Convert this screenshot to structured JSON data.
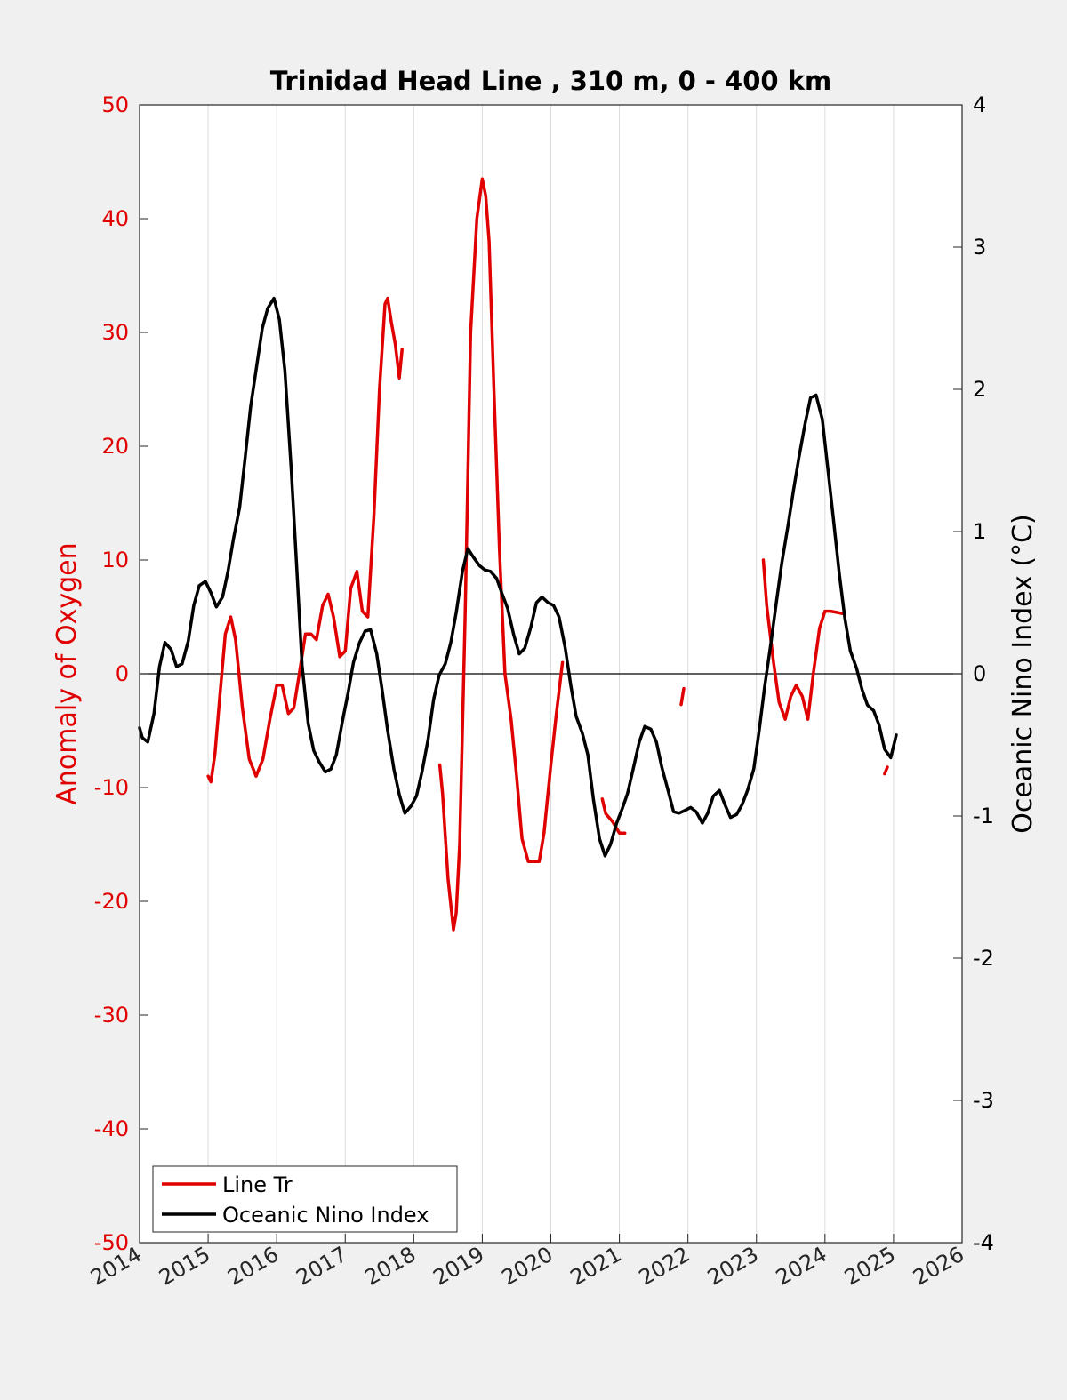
{
  "chart_data": {
    "type": "line",
    "title": "Trinidad Head Line , 310 m, 0 - 400 km",
    "xlim": [
      2014,
      2026
    ],
    "x_ticks": [
      "2014",
      "2015",
      "2016",
      "2017",
      "2018",
      "2019",
      "2020",
      "2021",
      "2022",
      "2023",
      "2024",
      "2025",
      "2026"
    ],
    "left_axis": {
      "label": "Anomaly of Oxygen",
      "color": "#e00000",
      "ylim": [
        -50,
        50
      ],
      "ticks": [
        "-50",
        "-40",
        "-30",
        "-20",
        "-10",
        "0",
        "10",
        "20",
        "30",
        "40",
        "50"
      ]
    },
    "right_axis": {
      "label": "Oceanic Nino Index (°C)",
      "color": "#000000",
      "ylim": [
        -4,
        4
      ],
      "ticks": [
        "-4",
        "-3",
        "-2",
        "-1",
        "0",
        "1",
        "2",
        "3",
        "4"
      ]
    },
    "grid": "vertical",
    "legend_position": "bottom-left",
    "series": [
      {
        "name": "Line Tr",
        "axis": "left",
        "color": "#e00000",
        "segments": [
          [
            [
              2015.0,
              -9.0
            ],
            [
              2015.04,
              -9.5
            ],
            [
              2015.1,
              -7
            ],
            [
              2015.17,
              -2
            ],
            [
              2015.25,
              3.5
            ],
            [
              2015.33,
              5.0
            ],
            [
              2015.4,
              3
            ],
            [
              2015.5,
              -3
            ],
            [
              2015.6,
              -7.5
            ],
            [
              2015.7,
              -9.0
            ],
            [
              2015.8,
              -7.5
            ],
            [
              2015.9,
              -4
            ],
            [
              2016.0,
              -1
            ],
            [
              2016.08,
              -1
            ],
            [
              2016.17,
              -3.5
            ],
            [
              2016.25,
              -3
            ],
            [
              2016.33,
              0
            ],
            [
              2016.42,
              3.5
            ],
            [
              2016.5,
              3.5
            ],
            [
              2016.58,
              3.0
            ],
            [
              2016.67,
              6
            ],
            [
              2016.75,
              7.0
            ],
            [
              2016.83,
              5
            ],
            [
              2016.92,
              1.5
            ],
            [
              2017.0,
              2
            ],
            [
              2017.08,
              7.5
            ],
            [
              2017.17,
              9.0
            ],
            [
              2017.25,
              5.5
            ],
            [
              2017.33,
              5.0
            ],
            [
              2017.42,
              14
            ],
            [
              2017.5,
              25
            ],
            [
              2017.58,
              32.5
            ],
            [
              2017.62,
              33.0
            ],
            [
              2017.67,
              31
            ],
            [
              2017.73,
              29
            ],
            [
              2017.79,
              26
            ],
            [
              2017.83,
              28.5
            ]
          ],
          [
            [
              2018.38,
              -8
            ],
            [
              2018.42,
              -10.5
            ],
            [
              2018.5,
              -18
            ],
            [
              2018.58,
              -22.5
            ],
            [
              2018.62,
              -21
            ],
            [
              2018.67,
              -15
            ],
            [
              2018.75,
              5
            ],
            [
              2018.83,
              30
            ],
            [
              2018.92,
              40
            ],
            [
              2019.0,
              43.5
            ],
            [
              2019.05,
              42
            ],
            [
              2019.1,
              38
            ],
            [
              2019.17,
              25
            ],
            [
              2019.25,
              11
            ],
            [
              2019.33,
              0
            ],
            [
              2019.42,
              -4
            ],
            [
              2019.5,
              -9
            ],
            [
              2019.58,
              -14.5
            ],
            [
              2019.67,
              -16.5
            ],
            [
              2019.75,
              -16.5
            ],
            [
              2019.83,
              -16.5
            ],
            [
              2019.9,
              -14
            ],
            [
              2020.0,
              -8
            ],
            [
              2020.08,
              -3.5
            ],
            [
              2020.17,
              1.0
            ]
          ],
          [
            [
              2020.75,
              -11
            ],
            [
              2020.8,
              -12.3
            ],
            [
              2020.9,
              -13
            ],
            [
              2021.0,
              -14
            ],
            [
              2021.08,
              -14
            ]
          ],
          [
            [
              2021.9,
              -2.7
            ],
            [
              2021.94,
              -1.3
            ]
          ],
          [
            [
              2023.1,
              10
            ],
            [
              2023.15,
              6
            ],
            [
              2023.25,
              1
            ],
            [
              2023.33,
              -2.5
            ],
            [
              2023.42,
              -4
            ],
            [
              2023.5,
              -2
            ],
            [
              2023.58,
              -1
            ],
            [
              2023.67,
              -2
            ],
            [
              2023.75,
              -4
            ],
            [
              2023.83,
              0
            ],
            [
              2023.92,
              4
            ],
            [
              2024.0,
              5.5
            ],
            [
              2024.08,
              5.5
            ],
            [
              2024.17,
              5.4
            ],
            [
              2024.25,
              5.3
            ]
          ],
          [
            [
              2024.87,
              -8.8
            ],
            [
              2024.91,
              -8.2
            ]
          ]
        ]
      },
      {
        "name": "Oceanic Nino Index",
        "axis": "right",
        "color": "#000000",
        "segments": [
          [
            [
              2014.0,
              -0.38
            ],
            [
              2014.04,
              -0.45
            ],
            [
              2014.12,
              -0.48
            ],
            [
              2014.21,
              -0.28
            ],
            [
              2014.29,
              0.05
            ],
            [
              2014.37,
              0.22
            ],
            [
              2014.46,
              0.17
            ],
            [
              2014.54,
              0.05
            ],
            [
              2014.62,
              0.07
            ],
            [
              2014.71,
              0.23
            ],
            [
              2014.79,
              0.48
            ],
            [
              2014.87,
              0.62
            ],
            [
              2014.96,
              0.65
            ],
            [
              2015.04,
              0.57
            ],
            [
              2015.12,
              0.47
            ],
            [
              2015.21,
              0.54
            ],
            [
              2015.29,
              0.72
            ],
            [
              2015.37,
              0.95
            ],
            [
              2015.46,
              1.17
            ],
            [
              2015.54,
              1.52
            ],
            [
              2015.62,
              1.88
            ],
            [
              2015.71,
              2.17
            ],
            [
              2015.79,
              2.43
            ],
            [
              2015.87,
              2.57
            ],
            [
              2015.96,
              2.64
            ],
            [
              2016.04,
              2.49
            ],
            [
              2016.12,
              2.13
            ],
            [
              2016.21,
              1.45
            ],
            [
              2016.29,
              0.77
            ],
            [
              2016.37,
              0.06
            ],
            [
              2016.46,
              -0.35
            ],
            [
              2016.54,
              -0.54
            ],
            [
              2016.62,
              -0.62
            ],
            [
              2016.71,
              -0.69
            ],
            [
              2016.79,
              -0.67
            ],
            [
              2016.87,
              -0.57
            ],
            [
              2016.96,
              -0.33
            ],
            [
              2017.04,
              -0.14
            ],
            [
              2017.12,
              0.08
            ],
            [
              2017.21,
              0.22
            ],
            [
              2017.29,
              0.3
            ],
            [
              2017.37,
              0.31
            ],
            [
              2017.46,
              0.14
            ],
            [
              2017.54,
              -0.12
            ],
            [
              2017.62,
              -0.4
            ],
            [
              2017.71,
              -0.67
            ],
            [
              2017.79,
              -0.85
            ],
            [
              2017.87,
              -0.98
            ],
            [
              2017.96,
              -0.93
            ],
            [
              2018.04,
              -0.86
            ],
            [
              2018.12,
              -0.69
            ],
            [
              2018.21,
              -0.46
            ],
            [
              2018.29,
              -0.18
            ],
            [
              2018.37,
              -0.01
            ],
            [
              2018.46,
              0.07
            ],
            [
              2018.54,
              0.22
            ],
            [
              2018.62,
              0.43
            ],
            [
              2018.71,
              0.72
            ],
            [
              2018.79,
              0.88
            ],
            [
              2018.87,
              0.82
            ],
            [
              2018.96,
              0.76
            ],
            [
              2019.04,
              0.73
            ],
            [
              2019.12,
              0.72
            ],
            [
              2019.21,
              0.67
            ],
            [
              2019.29,
              0.56
            ],
            [
              2019.37,
              0.46
            ],
            [
              2019.46,
              0.27
            ],
            [
              2019.54,
              0.14
            ],
            [
              2019.62,
              0.18
            ],
            [
              2019.71,
              0.33
            ],
            [
              2019.79,
              0.5
            ],
            [
              2019.87,
              0.54
            ],
            [
              2019.96,
              0.5
            ],
            [
              2020.04,
              0.48
            ],
            [
              2020.12,
              0.4
            ],
            [
              2020.21,
              0.18
            ],
            [
              2020.29,
              -0.08
            ],
            [
              2020.37,
              -0.3
            ],
            [
              2020.46,
              -0.42
            ],
            [
              2020.54,
              -0.57
            ],
            [
              2020.62,
              -0.88
            ],
            [
              2020.71,
              -1.16
            ],
            [
              2020.79,
              -1.28
            ],
            [
              2020.87,
              -1.2
            ],
            [
              2020.96,
              -1.05
            ],
            [
              2021.04,
              -0.95
            ],
            [
              2021.12,
              -0.84
            ],
            [
              2021.21,
              -0.65
            ],
            [
              2021.29,
              -0.48
            ],
            [
              2021.37,
              -0.37
            ],
            [
              2021.46,
              -0.39
            ],
            [
              2021.54,
              -0.48
            ],
            [
              2021.62,
              -0.66
            ],
            [
              2021.71,
              -0.82
            ],
            [
              2021.79,
              -0.97
            ],
            [
              2021.87,
              -0.98
            ],
            [
              2021.96,
              -0.96
            ],
            [
              2022.04,
              -0.94
            ],
            [
              2022.12,
              -0.97
            ],
            [
              2022.21,
              -1.05
            ],
            [
              2022.29,
              -0.98
            ],
            [
              2022.37,
              -0.86
            ],
            [
              2022.46,
              -0.82
            ],
            [
              2022.54,
              -0.92
            ],
            [
              2022.62,
              -1.01
            ],
            [
              2022.71,
              -0.99
            ],
            [
              2022.79,
              -0.92
            ],
            [
              2022.87,
              -0.82
            ],
            [
              2022.96,
              -0.67
            ],
            [
              2023.04,
              -0.4
            ],
            [
              2023.12,
              -0.09
            ],
            [
              2023.21,
              0.21
            ],
            [
              2023.29,
              0.5
            ],
            [
              2023.37,
              0.78
            ],
            [
              2023.46,
              1.04
            ],
            [
              2023.54,
              1.29
            ],
            [
              2023.62,
              1.52
            ],
            [
              2023.71,
              1.76
            ],
            [
              2023.79,
              1.94
            ],
            [
              2023.87,
              1.96
            ],
            [
              2023.96,
              1.79
            ],
            [
              2024.04,
              1.45
            ],
            [
              2024.12,
              1.1
            ],
            [
              2024.21,
              0.7
            ],
            [
              2024.29,
              0.39
            ],
            [
              2024.37,
              0.16
            ],
            [
              2024.46,
              0.04
            ],
            [
              2024.54,
              -0.11
            ],
            [
              2024.62,
              -0.22
            ],
            [
              2024.71,
              -0.26
            ],
            [
              2024.79,
              -0.36
            ],
            [
              2024.87,
              -0.53
            ],
            [
              2024.96,
              -0.59
            ],
            [
              2025.04,
              -0.43
            ]
          ]
        ]
      }
    ]
  }
}
